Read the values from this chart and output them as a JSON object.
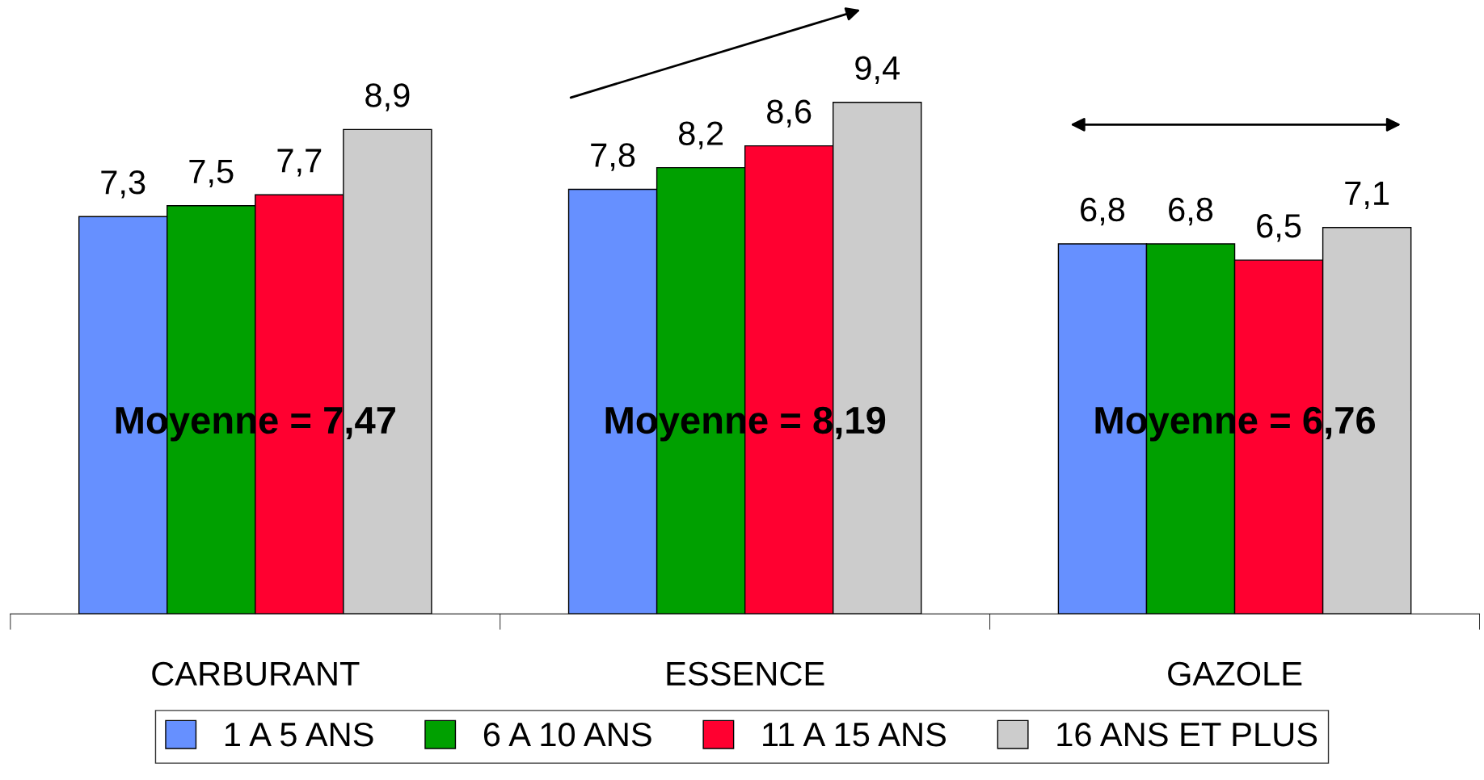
{
  "chart_data": {
    "type": "bar",
    "categories": [
      "CARBURANT",
      "ESSENCE",
      "GAZOLE"
    ],
    "series": [
      {
        "name": "1 A 5 ANS",
        "color": "#6690ff",
        "values": [
          7.3,
          7.8,
          6.8
        ],
        "value_labels": [
          "7,3",
          "7,8",
          "6,8"
        ]
      },
      {
        "name": "6 A 10 ANS",
        "color": "#00a000",
        "values": [
          7.5,
          8.2,
          6.8
        ],
        "value_labels": [
          "7,5",
          "8,2",
          "6,8"
        ]
      },
      {
        "name": "11 A 15 ANS",
        "color": "#ff0030",
        "values": [
          7.7,
          8.6,
          6.5
        ],
        "value_labels": [
          "7,7",
          "8,6",
          "6,5"
        ]
      },
      {
        "name": "16 ANS ET PLUS",
        "color": "#cccccc",
        "values": [
          8.9,
          9.4,
          7.1
        ],
        "value_labels": [
          "8,9",
          "9,4",
          "7,1"
        ]
      }
    ],
    "tick_labels": "x",
    "grid": false,
    "legend": "bottom",
    "annotations": [
      "Moyenne = 7,47",
      "Moyenne = 8,19",
      "Moyenne = 6,76"
    ]
  }
}
